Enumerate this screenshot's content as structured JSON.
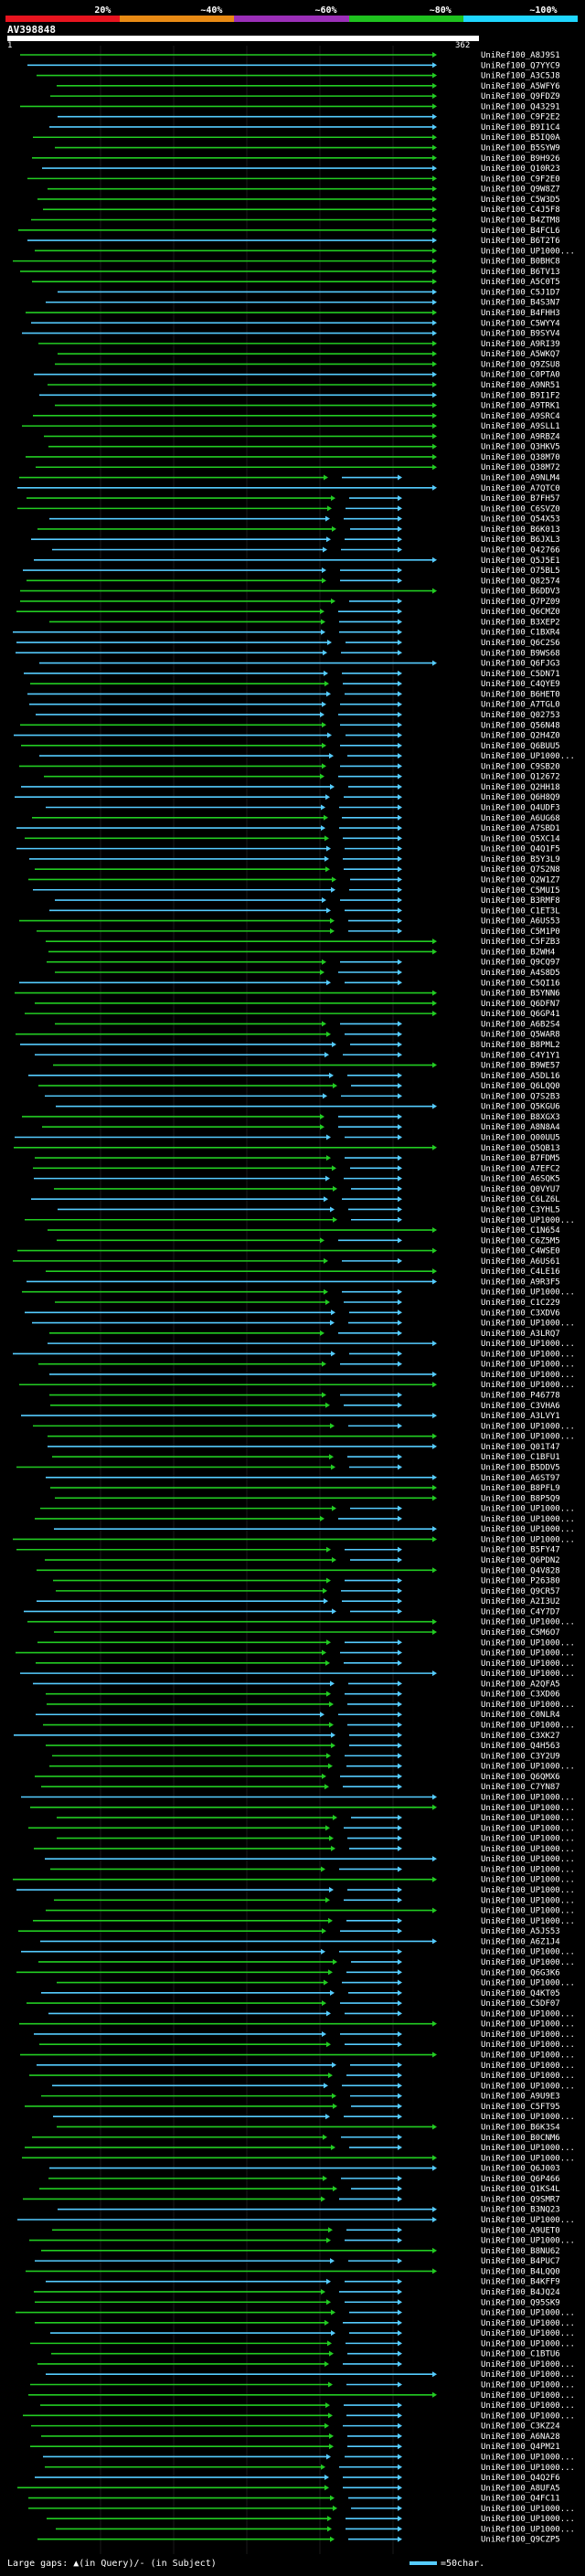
{
  "scale": {
    "ticks": [
      "20%",
      "~40%",
      "~60%",
      "~80%",
      "~100%"
    ],
    "colors": [
      "#e8141f",
      "#e88a14",
      "#9b2fb8",
      "#1fc21f",
      "#1fd6ff"
    ]
  },
  "query": {
    "name": "AV398848",
    "start": "1",
    "end": "362"
  },
  "legend": {
    "gaps": "Large gaps: ▲(in Query)/- (in Subject)",
    "scale": "=50char."
  },
  "hit_colors": {
    "green": "#22cc22",
    "cyan": "#55ccff"
  },
  "hits": [
    "UniRef100_A8J9S1",
    "UniRef100_Q7YYC9",
    "UniRef100_A3C5J8",
    "UniRef100_A5WFY6",
    "UniRef100_Q9FDZ9",
    "UniRef100_Q43291",
    "UniRef100_C9F2E2",
    "UniRef100_B9I1C4",
    "UniRef100_B5IQ0A",
    "UniRef100_B5SYW9",
    "UniRef100_B9H926",
    "UniRef100_Q10R23",
    "UniRef100_C9F2E0",
    "UniRef100_Q9W8Z7",
    "UniRef100_C5W3D5",
    "UniRef100_C4J5F8",
    "UniRef100_B4ZTM8",
    "UniRef100_B4FCL6",
    "UniRef100_B6T2T6",
    "UniRef100_UP1000...",
    "UniRef100_B0BHC8",
    "UniRef100_B6TV13",
    "UniRef100_A5C0T5",
    "UniRef100_C5J1D7",
    "UniRef100_B4S3N7",
    "UniRef100_B4FHH3",
    "UniRef100_C5WYY4",
    "UniRef100_B9SYV4",
    "UniRef100_A9RI39",
    "UniRef100_A5WKQ7",
    "UniRef100_Q9ZSU8",
    "UniRef100_C0PTA0",
    "UniRef100_A9NR51",
    "UniRef100_B9I1F2",
    "UniRef100_A9TRK1",
    "UniRef100_A9SRC4",
    "UniRef100_A9SLL1",
    "UniRef100_A9RBZ4",
    "UniRef100_Q3HKV5",
    "UniRef100_Q38M70",
    "UniRef100_Q38M72",
    "UniRef100_A9NLM4",
    "UniRef100_A7QTC0",
    "UniRef100_B7FH57",
    "UniRef100_C6SVZ0",
    "UniRef100_Q54X53",
    "UniRef100_B6K013",
    "UniRef100_B6JXL3",
    "UniRef100_Q42766",
    "UniRef100_Q5J5E1",
    "UniRef100_O75BL5",
    "UniRef100_Q82574",
    "UniRef100_B6DDV3",
    "UniRef100_Q7PZ09",
    "UniRef100_Q6CMZ0",
    "UniRef100_B3XEP2",
    "UniRef100_C1BXR4",
    "UniRef100_Q6C2S6",
    "UniRef100_B9WS68",
    "UniRef100_Q6FJG3",
    "UniRef100_C5DN71",
    "UniRef100_C4QYE9",
    "UniRef100_B6HET0",
    "UniRef100_A7TGL0",
    "UniRef100_Q02753",
    "UniRef100_Q56N48",
    "UniRef100_Q2H4Z0",
    "UniRef100_Q6BUU5",
    "UniRef100_UP1000...",
    "UniRef100_C9SB20",
    "UniRef100_Q12672",
    "UniRef100_Q2HH18",
    "UniRef100_Q6H8Q9",
    "UniRef100_Q4UDF3",
    "UniRef100_A6UG68",
    "UniRef100_A7SBD1",
    "UniRef100_Q5XC14",
    "UniRef100_Q4Q1F5",
    "UniRef100_B5Y3L9",
    "UniRef100_Q7S2N8",
    "UniRef100_Q2W1Z7",
    "UniRef100_C5MUI5",
    "UniRef100_B3RMF8",
    "UniRef100_C1ET3L",
    "UniRef100_A6US53",
    "UniRef100_C5M1P0",
    "UniRef100_C5FZB3",
    "UniRef100_B2WH4",
    "UniRef100_Q9CQ97",
    "UniRef100_A4S8D5",
    "UniRef100_C5QI16",
    "UniRef100_B5YNN6",
    "UniRef100_Q6DFN7",
    "UniRef100_Q6GP41",
    "UniRef100_A6B2S4",
    "UniRef100_Q5WAR8",
    "UniRef100_B8PML2",
    "UniRef100_C4Y1Y1",
    "UniRef100_B9WE57",
    "UniRef100_A5DL16",
    "UniRef100_Q6LQQ0",
    "UniRef100_Q7S2B3",
    "UniRef100_Q5KGU6",
    "UniRef100_B8XGX3",
    "UniRef100_A8N8A4",
    "UniRef100_Q00UU5",
    "UniRef100_Q5QB13",
    "UniRef100_B7FDM5",
    "UniRef100_A7EFC2",
    "UniRef100_A6SQK5",
    "UniRef100_Q0VYU7",
    "UniRef100_C6LZ6L",
    "UniRef100_C3YHL5",
    "UniRef100_UP1000...",
    "UniRef100_C1N654",
    "UniRef100_C6Z5M5",
    "UniRef100_C4WSE0",
    "UniRef100_A6US61",
    "UniRef100_C4LE16",
    "UniRef100_A9R3F5",
    "UniRef100_UP1000...",
    "UniRef100_C1C229",
    "UniRef100_C3XDV6",
    "UniRef100_UP1000...",
    "UniRef100_A3LRQ7",
    "UniRef100_UP1000...",
    "UniRef100_UP1000...",
    "UniRef100_UP1000...",
    "UniRef100_UP1000...",
    "UniRef100_UP1000...",
    "UniRef100_P46778",
    "UniRef100_C3VHA6",
    "UniRef100_A3LVY1",
    "UniRef100_UP1000...",
    "UniRef100_UP1000...",
    "UniRef100_Q01T47",
    "UniRef100_C1BFU1",
    "UniRef100_B5DDV5",
    "UniRef100_A6ST97",
    "UniRef100_B8PFL9",
    "UniRef100_B8P5Q9",
    "UniRef100_UP1000...",
    "UniRef100_UP1000...",
    "UniRef100_UP1000...",
    "UniRef100_UP1000...",
    "UniRef100_B5FY47",
    "UniRef100_Q6PDN2",
    "UniRef100_Q4V828",
    "UniRef100_P26380",
    "UniRef100_Q9CR57",
    "UniRef100_A2I3U2",
    "UniRef100_C4Y7D7",
    "UniRef100_UP1000...",
    "UniRef100_C5M6O7",
    "UniRef100_UP1000...",
    "UniRef100_UP1000...",
    "UniRef100_UP1000...",
    "UniRef100_UP1000...",
    "UniRef100_A2QFA5",
    "UniRef100_C3XD06",
    "UniRef100_UP1000...",
    "UniRef100_C0NLR4",
    "UniRef100_UP1000...",
    "UniRef100_C3XK27",
    "UniRef100_Q4H563",
    "UniRef100_C3Y2U9",
    "UniRef100_UP1000...",
    "UniRef100_Q6QMX6",
    "UniRef100_C7YN87",
    "UniRef100_UP1000...",
    "UniRef100_UP1000...",
    "UniRef100_UP1000...",
    "UniRef100_UP1000...",
    "UniRef100_UP1000...",
    "UniRef100_UP1000...",
    "UniRef100_UP1000...",
    "UniRef100_UP1000...",
    "UniRef100_UP1000...",
    "UniRef100_UP1000...",
    "UniRef100_UP1000...",
    "UniRef100_UP1000...",
    "UniRef100_UP1000...",
    "UniRef100_A5JS53",
    "UniRef100_A6Z1J4",
    "UniRef100_UP1000...",
    "UniRef100_UP1000...",
    "UniRef100_Q6G3K6",
    "UniRef100_UP1000...",
    "UniRef100_Q4KT05",
    "UniRef100_C5DF07",
    "UniRef100_UP1000...",
    "UniRef100_UP1000...",
    "UniRef100_UP1000...",
    "UniRef100_UP1000...",
    "UniRef100_UP1000...",
    "UniRef100_UP1000...",
    "UniRef100_UP1000...",
    "UniRef100_UP1000...",
    "UniRef100_A9U9E3",
    "UniRef100_C5FT95",
    "UniRef100_UP1000...",
    "UniRef100_B6K3S4",
    "UniRef100_B0CNM6",
    "UniRef100_UP1000...",
    "UniRef100_UP1000...",
    "UniRef100_Q6J003",
    "UniRef100_Q6P466",
    "UniRef100_Q1KS4L",
    "UniRef100_Q9SMR7",
    "UniRef100_B3NQ23",
    "UniRef100_UP1000...",
    "UniRef100_A9UET0",
    "UniRef100_UP1000...",
    "UniRef100_B8NU62",
    "UniRef100_B4PUC7",
    "UniRef100_B4LQQ0",
    "UniRef100_B4KFF9",
    "UniRef100_B4JQ24",
    "UniRef100_Q95SK9",
    "UniRef100_UP1000...",
    "UniRef100_UP1000...",
    "UniRef100_UP1000...",
    "UniRef100_UP1000...",
    "UniRef100_C1BTU6",
    "UniRef100_UP1000...",
    "UniRef100_UP1000...",
    "UniRef100_UP1000...",
    "UniRef100_UP1000...",
    "UniRef100_UP1000...",
    "UniRef100_UP1000...",
    "UniRef100_C3KZ24",
    "UniRef100_A6NA28",
    "UniRef100_Q4PM21",
    "UniRef100_UP1000...",
    "UniRef100_UP1000...",
    "UniRef100_Q4Q2F6",
    "UniRef100_A8UFA5",
    "UniRef100_Q4FC11",
    "UniRef100_UP1000...",
    "UniRef100_UP1000...",
    "UniRef100_UP1000...",
    "UniRef100_Q9CZP5"
  ]
}
